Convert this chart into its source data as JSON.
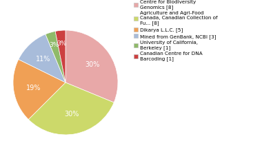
{
  "labels": [
    "Centre for Biodiversity\nGenomics [8]",
    "Agriculture and Agri-Food\nCanada, Canadian Collection of\nFu... [8]",
    "Dikarya L.L.C. [5]",
    "Mined from GenBank, NCBI [3]",
    "University of California,\nBerkeley [1]",
    "Canadian Centre for DNA\nBarcoding [1]"
  ],
  "values": [
    30,
    30,
    19,
    11,
    3,
    3
  ],
  "colors": [
    "#e8a8a8",
    "#ccd96a",
    "#f0a055",
    "#a8bcda",
    "#8fba6a",
    "#cc4040"
  ],
  "pct_labels": [
    "30%",
    "30%",
    "19%",
    "11%",
    "3%",
    "3%"
  ],
  "text_color": "white",
  "background_color": "#ffffff",
  "startangle": 90
}
